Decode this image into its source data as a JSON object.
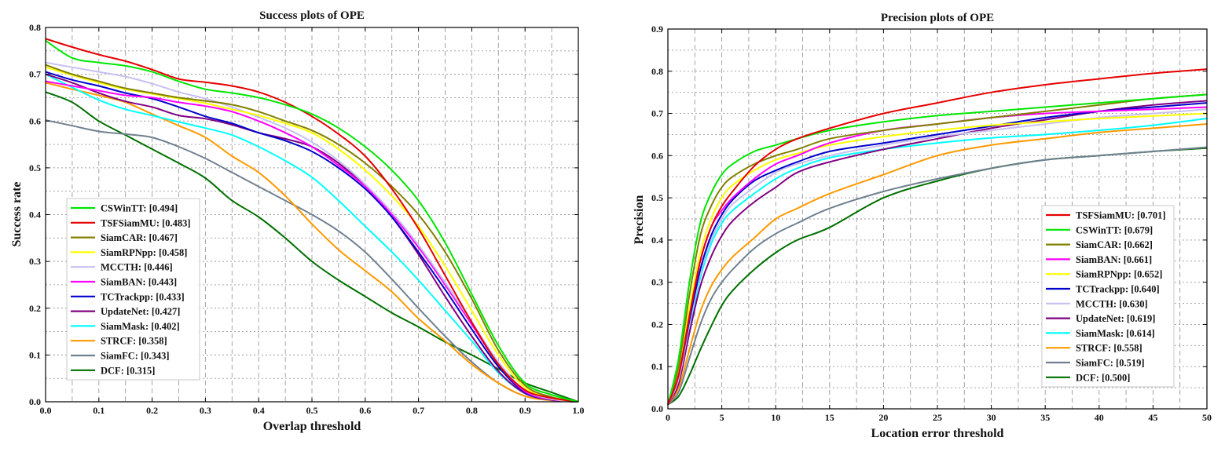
{
  "chart_data": [
    {
      "type": "line",
      "title": "Success plots of OPE",
      "xlabel": "Overlap threshold",
      "ylabel": "Success rate",
      "xlim": [
        0,
        1
      ],
      "ylim": [
        0,
        0.8
      ],
      "xticks": [
        "0.0",
        "0.1",
        "0.2",
        "0.3",
        "0.4",
        "0.5",
        "0.6",
        "0.7",
        "0.8",
        "0.9",
        "1.0"
      ],
      "yticks": [
        "0.0",
        "0.1",
        "0.2",
        "0.3",
        "0.4",
        "0.5",
        "0.6",
        "0.7",
        "0.8"
      ],
      "legend_position": "bottom-left",
      "grid": true,
      "x": [
        0,
        0.05,
        0.1,
        0.15,
        0.2,
        0.25,
        0.3,
        0.35,
        0.4,
        0.45,
        0.5,
        0.55,
        0.6,
        0.65,
        0.7,
        0.75,
        0.8,
        0.85,
        0.9,
        0.95,
        1.0
      ],
      "series": [
        {
          "name": "CSWinTT",
          "label": "CSWinTT: [0.494]",
          "color": "#00e600",
          "values": [
            0.772,
            0.735,
            0.725,
            0.718,
            0.705,
            0.685,
            0.668,
            0.66,
            0.65,
            0.635,
            0.615,
            0.585,
            0.545,
            0.495,
            0.43,
            0.34,
            0.23,
            0.12,
            0.04,
            0.015,
            0.0
          ]
        },
        {
          "name": "TSFSiamMU",
          "label": "TSFSiamMU: [0.483]",
          "color": "#e60000",
          "values": [
            0.776,
            0.758,
            0.742,
            0.728,
            0.71,
            0.69,
            0.683,
            0.675,
            0.662,
            0.64,
            0.61,
            0.572,
            0.525,
            0.455,
            0.37,
            0.27,
            0.17,
            0.08,
            0.025,
            0.008,
            0.0
          ]
        },
        {
          "name": "SiamCAR",
          "label": "SiamCAR: [0.467]",
          "color": "#808000",
          "values": [
            0.72,
            0.7,
            0.685,
            0.67,
            0.66,
            0.65,
            0.643,
            0.635,
            0.62,
            0.6,
            0.58,
            0.55,
            0.51,
            0.46,
            0.4,
            0.32,
            0.22,
            0.11,
            0.035,
            0.01,
            0.0
          ]
        },
        {
          "name": "SiamRPNpp",
          "label": "SiamRPNpp: [0.458]",
          "color": "#ffff00",
          "values": [
            0.715,
            0.698,
            0.682,
            0.668,
            0.658,
            0.648,
            0.638,
            0.625,
            0.612,
            0.595,
            0.575,
            0.54,
            0.495,
            0.44,
            0.375,
            0.29,
            0.195,
            0.1,
            0.03,
            0.008,
            0.0
          ]
        },
        {
          "name": "MCCTH",
          "label": "MCCTH: [0.446]",
          "color": "#c8c0f0",
          "values": [
            0.725,
            0.715,
            0.705,
            0.695,
            0.68,
            0.662,
            0.648,
            0.63,
            0.608,
            0.585,
            0.555,
            0.515,
            0.465,
            0.405,
            0.335,
            0.255,
            0.17,
            0.085,
            0.025,
            0.006,
            0.0
          ]
        },
        {
          "name": "SiamBAN",
          "label": "SiamBAN: [0.443]",
          "color": "#ff00ff",
          "values": [
            0.685,
            0.675,
            0.665,
            0.655,
            0.65,
            0.64,
            0.632,
            0.62,
            0.6,
            0.575,
            0.545,
            0.505,
            0.46,
            0.4,
            0.33,
            0.25,
            0.165,
            0.08,
            0.022,
            0.005,
            0.0
          ]
        },
        {
          "name": "TCTrackpp",
          "label": "TCTrackpp: [0.433]",
          "color": "#0000cc",
          "values": [
            0.705,
            0.688,
            0.675,
            0.66,
            0.648,
            0.63,
            0.61,
            0.595,
            0.575,
            0.558,
            0.535,
            0.5,
            0.455,
            0.395,
            0.32,
            0.24,
            0.155,
            0.075,
            0.02,
            0.005,
            0.0
          ]
        },
        {
          "name": "UpdateNet",
          "label": "UpdateNet: [0.427]",
          "color": "#800080",
          "values": [
            0.7,
            0.682,
            0.66,
            0.642,
            0.63,
            0.612,
            0.605,
            0.592,
            0.575,
            0.562,
            0.545,
            0.51,
            0.46,
            0.395,
            0.315,
            0.225,
            0.14,
            0.065,
            0.018,
            0.004,
            0.0
          ]
        },
        {
          "name": "SiamMask",
          "label": "SiamMask: [0.402]",
          "color": "#00ffff",
          "values": [
            0.7,
            0.672,
            0.645,
            0.625,
            0.612,
            0.598,
            0.585,
            0.57,
            0.545,
            0.515,
            0.48,
            0.43,
            0.375,
            0.32,
            0.26,
            0.195,
            0.13,
            0.062,
            0.018,
            0.004,
            0.0
          ]
        },
        {
          "name": "STRCF",
          "label": "STRCF: [0.358]",
          "color": "#ff9900",
          "values": [
            0.682,
            0.668,
            0.655,
            0.64,
            0.615,
            0.59,
            0.565,
            0.525,
            0.49,
            0.44,
            0.38,
            0.325,
            0.28,
            0.235,
            0.178,
            0.13,
            0.08,
            0.04,
            0.012,
            0.003,
            0.0
          ]
        },
        {
          "name": "SiamFC",
          "label": "SiamFC: [0.343]",
          "color": "#708090",
          "values": [
            0.602,
            0.59,
            0.578,
            0.572,
            0.565,
            0.545,
            0.52,
            0.49,
            0.46,
            0.43,
            0.4,
            0.365,
            0.32,
            0.262,
            0.2,
            0.14,
            0.085,
            0.04,
            0.012,
            0.003,
            0.0
          ]
        },
        {
          "name": "DCF",
          "label": "DCF: [0.315]",
          "color": "#007000",
          "values": [
            0.662,
            0.64,
            0.6,
            0.57,
            0.54,
            0.51,
            0.478,
            0.43,
            0.395,
            0.35,
            0.3,
            0.26,
            0.225,
            0.19,
            0.16,
            0.128,
            0.1,
            0.07,
            0.04,
            0.02,
            0.0
          ]
        }
      ]
    },
    {
      "type": "line",
      "title": "Precision plots of OPE",
      "xlabel": "Location error threshold",
      "ylabel": "Precision",
      "xlim": [
        0,
        50
      ],
      "ylim": [
        0,
        0.9
      ],
      "xticks": [
        "0",
        "5",
        "10",
        "15",
        "20",
        "25",
        "30",
        "35",
        "40",
        "45",
        "50"
      ],
      "yticks": [
        "0.0",
        "0.1",
        "0.2",
        "0.3",
        "0.4",
        "0.5",
        "0.6",
        "0.7",
        "0.8",
        "0.9"
      ],
      "legend_position": "bottom-right",
      "grid": true,
      "x": [
        0,
        1,
        2,
        3,
        4,
        5,
        6,
        8,
        10,
        12,
        15,
        20,
        25,
        30,
        35,
        40,
        45,
        50
      ],
      "series": [
        {
          "name": "TSFSiamMU",
          "label": "TSFSiamMU: [0.701]",
          "color": "#e60000",
          "values": [
            0.01,
            0.08,
            0.22,
            0.35,
            0.43,
            0.48,
            0.515,
            0.575,
            0.615,
            0.64,
            0.665,
            0.7,
            0.725,
            0.75,
            0.768,
            0.782,
            0.795,
            0.805
          ]
        },
        {
          "name": "CSWinTT",
          "label": "CSWinTT: [0.679]",
          "color": "#00e600",
          "values": [
            0.01,
            0.12,
            0.3,
            0.44,
            0.51,
            0.555,
            0.58,
            0.61,
            0.625,
            0.64,
            0.66,
            0.68,
            0.695,
            0.705,
            0.715,
            0.725,
            0.735,
            0.745
          ]
        },
        {
          "name": "SiamCAR",
          "label": "SiamCAR: [0.662]",
          "color": "#808000",
          "values": [
            0.01,
            0.1,
            0.27,
            0.41,
            0.48,
            0.525,
            0.55,
            0.58,
            0.6,
            0.615,
            0.64,
            0.66,
            0.675,
            0.69,
            0.705,
            0.72,
            0.735,
            0.745
          ]
        },
        {
          "name": "SiamBAN",
          "label": "SiamBAN: [0.661]",
          "color": "#ff00ff",
          "values": [
            0.01,
            0.08,
            0.22,
            0.35,
            0.43,
            0.47,
            0.5,
            0.545,
            0.58,
            0.6,
            0.63,
            0.66,
            0.675,
            0.69,
            0.7,
            0.705,
            0.71,
            0.715
          ]
        },
        {
          "name": "SiamRPNpp",
          "label": "SiamRPNpp: [0.652]",
          "color": "#ffff00",
          "values": [
            0.01,
            0.09,
            0.24,
            0.37,
            0.45,
            0.5,
            0.53,
            0.565,
            0.59,
            0.605,
            0.625,
            0.645,
            0.66,
            0.672,
            0.68,
            0.688,
            0.694,
            0.7
          ]
        },
        {
          "name": "TCTrackpp",
          "label": "TCTrackpp: [0.640]",
          "color": "#0000cc",
          "values": [
            0.01,
            0.08,
            0.21,
            0.33,
            0.41,
            0.46,
            0.495,
            0.54,
            0.565,
            0.585,
            0.61,
            0.63,
            0.65,
            0.67,
            0.69,
            0.705,
            0.715,
            0.725
          ]
        },
        {
          "name": "MCCTH",
          "label": "MCCTH: [0.630]",
          "color": "#c8c0f0",
          "values": [
            0.01,
            0.07,
            0.2,
            0.32,
            0.4,
            0.45,
            0.485,
            0.525,
            0.56,
            0.58,
            0.6,
            0.625,
            0.645,
            0.66,
            0.675,
            0.69,
            0.7,
            0.71
          ]
        },
        {
          "name": "UpdateNet",
          "label": "UpdateNet: [0.619]",
          "color": "#800080",
          "values": [
            0.01,
            0.06,
            0.18,
            0.29,
            0.36,
            0.41,
            0.445,
            0.49,
            0.525,
            0.56,
            0.585,
            0.615,
            0.64,
            0.665,
            0.685,
            0.705,
            0.72,
            0.73
          ]
        },
        {
          "name": "SiamMask",
          "label": "SiamMask: [0.614]",
          "color": "#00ffff",
          "values": [
            0.01,
            0.07,
            0.19,
            0.31,
            0.39,
            0.44,
            0.47,
            0.51,
            0.545,
            0.57,
            0.595,
            0.615,
            0.63,
            0.642,
            0.65,
            0.66,
            0.672,
            0.688
          ]
        },
        {
          "name": "STRCF",
          "label": "STRCF: [0.558]",
          "color": "#ff9900",
          "values": [
            0.01,
            0.05,
            0.14,
            0.23,
            0.29,
            0.33,
            0.36,
            0.405,
            0.45,
            0.475,
            0.51,
            0.555,
            0.6,
            0.625,
            0.64,
            0.655,
            0.665,
            0.675
          ]
        },
        {
          "name": "SiamFC",
          "label": "SiamFC: [0.519]",
          "color": "#708090",
          "values": [
            0.01,
            0.04,
            0.12,
            0.2,
            0.26,
            0.3,
            0.33,
            0.38,
            0.415,
            0.44,
            0.475,
            0.515,
            0.545,
            0.57,
            0.59,
            0.6,
            0.61,
            0.62
          ]
        },
        {
          "name": "DCF",
          "label": "DCF: [0.500]",
          "color": "#007000",
          "values": [
            0.01,
            0.03,
            0.08,
            0.14,
            0.195,
            0.245,
            0.28,
            0.33,
            0.37,
            0.4,
            0.43,
            0.5,
            0.54,
            0.57,
            0.59,
            0.6,
            0.61,
            0.618
          ]
        }
      ]
    }
  ]
}
